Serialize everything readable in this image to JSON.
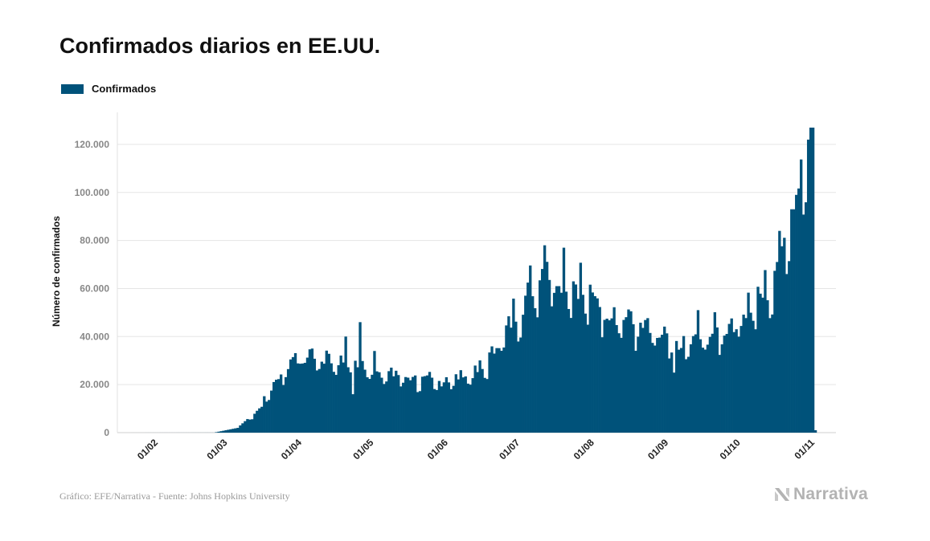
{
  "title": "Confirmados diarios en EE.UU.",
  "source": "Gráfico: EFE/Narrativa - Fuente: Johns Hopkins University",
  "brand": "Narrativa",
  "brand_icon": "narrativa-n-icon",
  "colors": {
    "bar": "#00527a",
    "grid": "#e5e5e5",
    "tick": "#888888"
  },
  "legend": [
    {
      "label": "Confirmados",
      "color": "#00527a"
    }
  ],
  "chart_data": {
    "type": "bar",
    "title": "Confirmados diarios en EE.UU.",
    "xlabel": "",
    "ylabel": "Número de confirmados",
    "ylim": [
      0,
      130000
    ],
    "yticks": [
      0,
      20000,
      40000,
      60000,
      80000,
      100000,
      120000
    ],
    "ytick_labels": [
      "0",
      "20.000",
      "40.000",
      "60.000",
      "80.000",
      "100.000",
      "120.000"
    ],
    "xtick_labels": [
      "01/02",
      "01/03",
      "01/04",
      "01/05",
      "01/06",
      "01/07",
      "01/08",
      "01/09",
      "01/10",
      "01/11"
    ],
    "x_start": "2020-01-22",
    "x_end": "2020-11-06",
    "grid": true,
    "legend_position": "top-left",
    "series": [
      {
        "name": "Confirmados",
        "color": "#00527a"
      }
    ],
    "segments": [
      {
        "from": "2020-01-22",
        "to": "2020-02-29",
        "from_value": 0,
        "to_value": 20
      },
      {
        "from": "2020-03-01",
        "to": "2020-03-10",
        "from_value": 200,
        "to_value": 2000
      },
      {
        "from": "2020-03-11",
        "to": "2020-03-20",
        "from_value": 3000,
        "to_value": 11000
      },
      {
        "from": "2020-03-21",
        "to": "2020-04-03",
        "from_value": 14000,
        "to_value": 33000
      },
      {
        "from": "2020-04-04",
        "to": "2020-04-25",
        "from_value": 32000,
        "to_value": 30000
      },
      {
        "from": "2020-04-26",
        "to": "2020-05-31",
        "from_value": 28000,
        "to_value": 21000
      },
      {
        "from": "2020-06-01",
        "to": "2020-06-20",
        "from_value": 21000,
        "to_value": 26000
      },
      {
        "from": "2020-06-21",
        "to": "2020-07-16",
        "from_value": 28000,
        "to_value": 70000
      },
      {
        "from": "2020-07-17",
        "to": "2020-07-31",
        "from_value": 68000,
        "to_value": 62000
      },
      {
        "from": "2020-08-01",
        "to": "2020-09-10",
        "from_value": 58000,
        "to_value": 35000
      },
      {
        "from": "2020-09-11",
        "to": "2020-09-30",
        "from_value": 36000,
        "to_value": 44000
      },
      {
        "from": "2020-10-01",
        "to": "2020-10-20",
        "from_value": 45000,
        "to_value": 62000
      },
      {
        "from": "2020-10-21",
        "to": "2020-11-05",
        "from_value": 70000,
        "to_value": 127000
      }
    ],
    "peaks": [
      {
        "date": "2020-04-10",
        "value": 35000
      },
      {
        "date": "2020-04-24",
        "value": 40000
      },
      {
        "date": "2020-04-30",
        "value": 46000
      },
      {
        "date": "2020-05-06",
        "value": 34000
      },
      {
        "date": "2020-07-16",
        "value": 78000
      },
      {
        "date": "2020-07-24",
        "value": 77000
      },
      {
        "date": "2020-09-18",
        "value": 51000
      },
      {
        "date": "2020-10-22",
        "value": 84000
      },
      {
        "date": "2020-10-29",
        "value": 99000
      },
      {
        "date": "2020-11-03",
        "value": 122000
      },
      {
        "date": "2020-11-04",
        "value": 127000
      },
      {
        "date": "2020-11-05",
        "value": 127000
      }
    ],
    "troughs": [
      {
        "date": "2020-04-27",
        "value": 16000
      },
      {
        "date": "2020-09-08",
        "value": 25000
      },
      {
        "date": "2020-11-06",
        "value": 1000
      }
    ]
  }
}
